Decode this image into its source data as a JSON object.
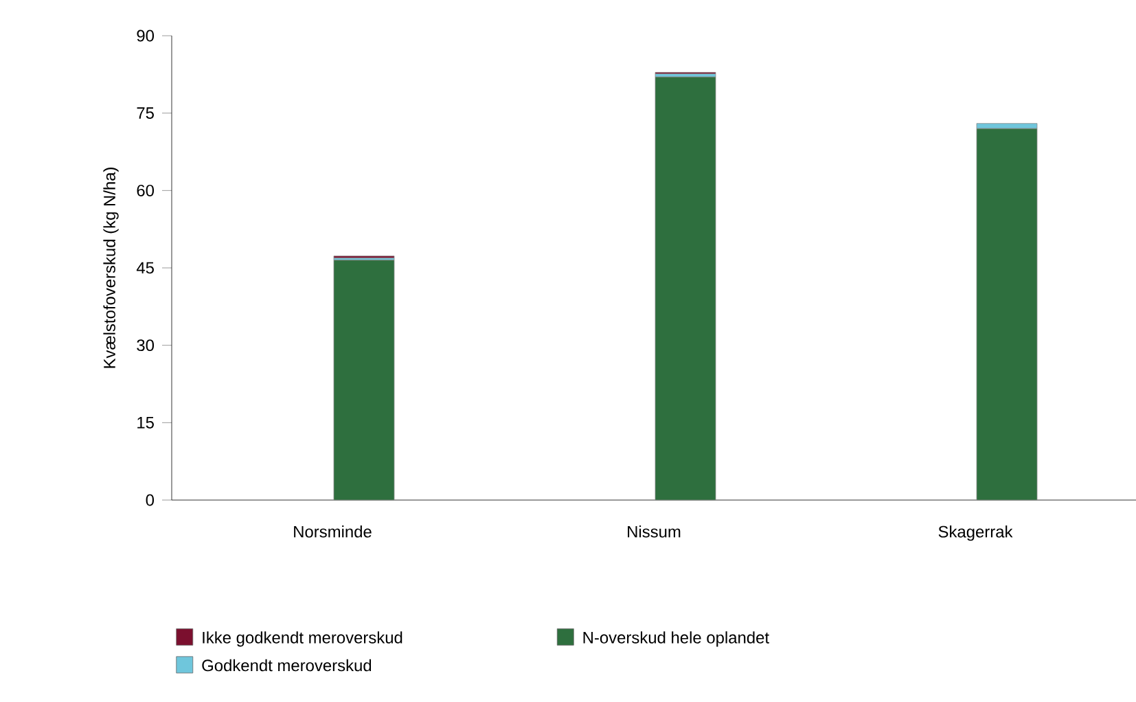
{
  "chart_data": {
    "type": "bar",
    "stacked": true,
    "ylabel": "Kvælstofoverskud (kg N/ha)",
    "categories": [
      "Norsminde",
      "Nissum",
      "Skagerrak"
    ],
    "series": [
      {
        "name": "N-overskud hele oplandet",
        "color": "#2e6f3e",
        "values": [
          46.5,
          82,
          72
        ]
      },
      {
        "name": "Godkendt meroverskud",
        "color": "#6fc6dc",
        "values": [
          0.4,
          0.6,
          1
        ]
      },
      {
        "name": "Ikke godkendt meroverskud",
        "color": "#7b0f2e",
        "values": [
          0.4,
          0.3,
          0
        ]
      }
    ],
    "ylim": [
      0,
      90
    ],
    "yticks": [
      0,
      15,
      30,
      45,
      60,
      75,
      90
    ],
    "legend": "bottom"
  }
}
